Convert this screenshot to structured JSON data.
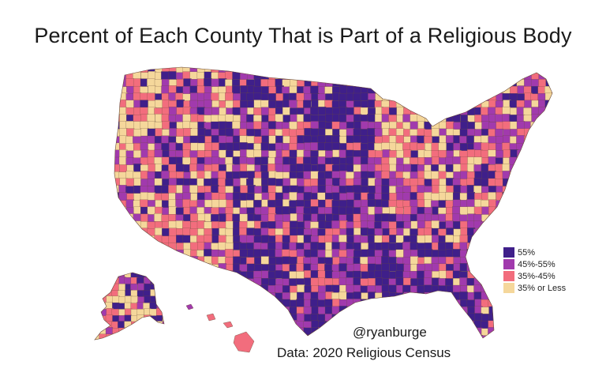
{
  "title": "Percent of Each County That is Part of a Religious Body",
  "legend": {
    "items": [
      {
        "label": "55%",
        "color": "#3f1f8a"
      },
      {
        "label": "45%-55%",
        "color": "#a13aad"
      },
      {
        "label": "35%-45%",
        "color": "#f26d7d"
      },
      {
        "label": "35% or Less",
        "color": "#f5d79b"
      }
    ]
  },
  "credits": {
    "handle": "@ryanburge",
    "source": "Data: 2020 Religious Census"
  },
  "palette": {
    "high": "#3f1f8a",
    "mid_high": "#a13aad",
    "mid_low": "#f26d7d",
    "low": "#f5d79b",
    "border": "#6a4a3a"
  }
}
